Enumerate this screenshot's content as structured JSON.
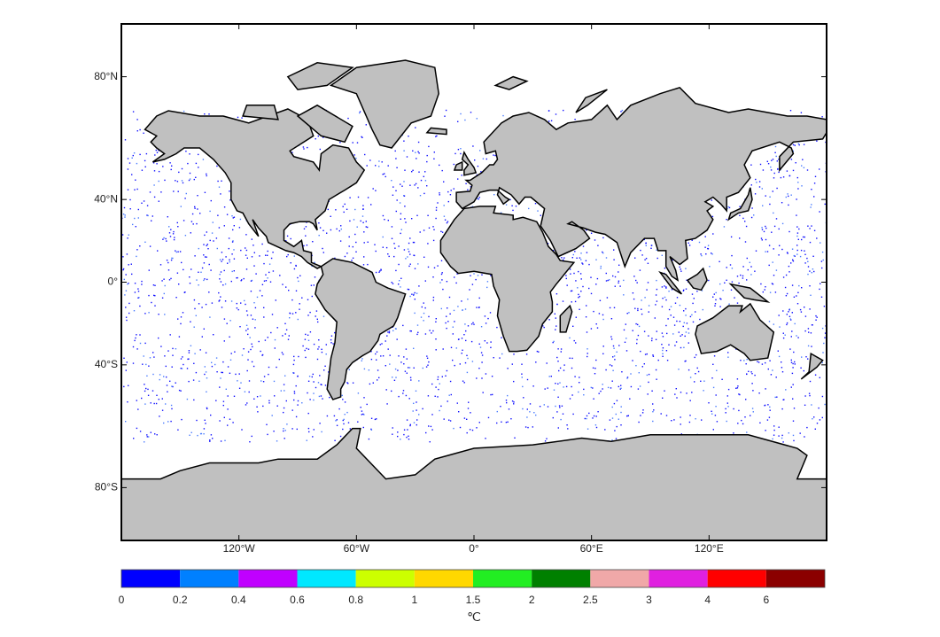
{
  "map": {
    "lon_range": [
      -180,
      180
    ],
    "lat_range": [
      -90,
      90
    ],
    "lon_ticks": [
      {
        "value": -120,
        "label": "120°W"
      },
      {
        "value": -60,
        "label": "60°W"
      },
      {
        "value": 0,
        "label": "0°"
      },
      {
        "value": 60,
        "label": "60°E"
      },
      {
        "value": 120,
        "label": "120°E"
      }
    ],
    "lat_ticks": [
      {
        "value": 80,
        "label": "80°N"
      },
      {
        "value": 40,
        "label": "40°N"
      },
      {
        "value": 0,
        "label": "0°"
      },
      {
        "value": -40,
        "label": "40°S"
      },
      {
        "value": -80,
        "label": "80°S"
      }
    ]
  },
  "colorbar": {
    "ticks": [
      0,
      0.2,
      0.4,
      0.6,
      0.8,
      1,
      1.5,
      2,
      2.5,
      3,
      4,
      6
    ],
    "colors": [
      "#0000ff",
      "#0080ff",
      "#c000ff",
      "#00e8ff",
      "#ccff00",
      "#ffd800",
      "#22ee22",
      "#008000",
      "#f0a8a8",
      "#e020e0",
      "#ff0000",
      "#8b0000"
    ],
    "unit": "℃"
  }
}
